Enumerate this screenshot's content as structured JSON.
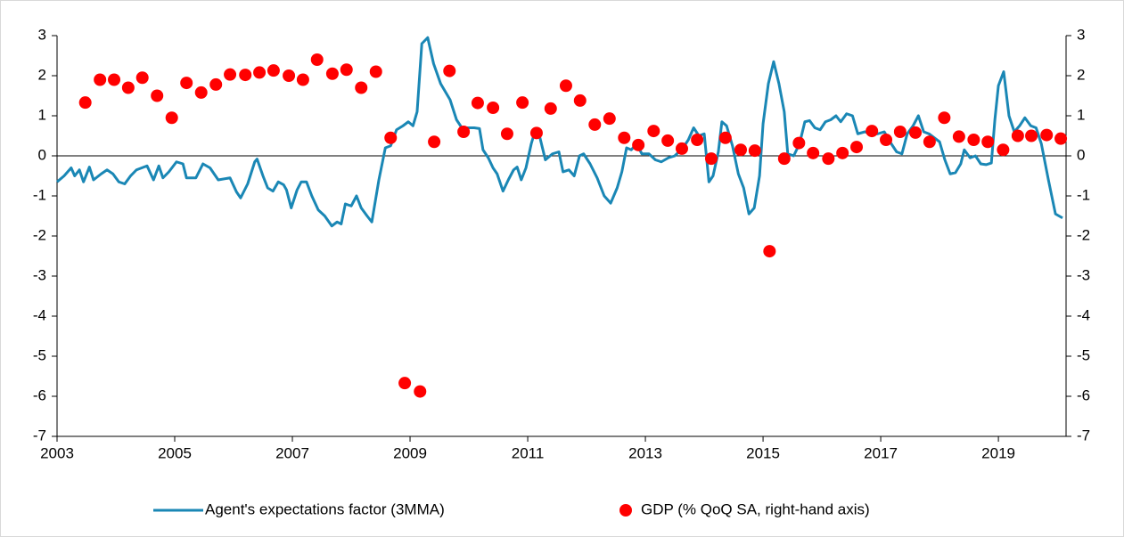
{
  "chart_data": {
    "type": "line",
    "xlim": [
      2003,
      2020.15
    ],
    "xticks": [
      2003,
      2005,
      2007,
      2009,
      2011,
      2013,
      2015,
      2017,
      2019
    ],
    "ylim": [
      -7,
      3
    ],
    "yticks": [
      -7,
      -6,
      -5,
      -4,
      -3,
      -2,
      -1,
      0,
      1,
      2,
      3
    ],
    "y2lim": [
      -7,
      3
    ],
    "y2ticks": [
      -7,
      -6,
      -5,
      -4,
      -3,
      -2,
      -1,
      0,
      1,
      2,
      3
    ],
    "legend": "bottom",
    "series": [
      {
        "name": "Agent's expectations factor (3MMA)",
        "type": "line",
        "color": "#1a87b5",
        "x": [
          2003.0,
          2003.12,
          2003.24,
          2003.3,
          2003.38,
          2003.45,
          2003.55,
          2003.62,
          2003.75,
          2003.85,
          2003.95,
          2004.05,
          2004.15,
          2004.25,
          2004.35,
          2004.53,
          2004.64,
          2004.73,
          2004.8,
          2004.9,
          2005.03,
          2005.14,
          2005.2,
          2005.36,
          2005.48,
          2005.6,
          2005.74,
          2005.94,
          2006.05,
          2006.12,
          2006.24,
          2006.36,
          2006.4,
          2006.5,
          2006.58,
          2006.67,
          2006.76,
          2006.85,
          2006.9,
          2006.98,
          2007.08,
          2007.15,
          2007.24,
          2007.33,
          2007.44,
          2007.55,
          2007.67,
          2007.76,
          2007.83,
          2007.9,
          2008.0,
          2008.09,
          2008.17,
          2008.27,
          2008.35,
          2008.47,
          2008.58,
          2008.67,
          2008.77,
          2008.88,
          2008.97,
          2009.05,
          2009.12,
          2009.2,
          2009.3,
          2009.4,
          2009.52,
          2009.6,
          2009.68,
          2009.79,
          2009.88,
          2009.98,
          2010.09,
          2010.18,
          2010.24,
          2010.33,
          2010.41,
          2010.48,
          2010.58,
          2010.67,
          2010.76,
          2010.82,
          2010.89,
          2010.97,
          2011.06,
          2011.12,
          2011.2,
          2011.3,
          2011.42,
          2011.53,
          2011.6,
          2011.7,
          2011.79,
          2011.88,
          2011.95,
          2012.06,
          2012.18,
          2012.3,
          2012.41,
          2012.52,
          2012.6,
          2012.68,
          2012.76,
          2012.85,
          2012.94,
          2013.06,
          2013.17,
          2013.27,
          2013.39,
          2013.5,
          2013.64,
          2013.73,
          2013.82,
          2013.91,
          2014.0,
          2014.08,
          2014.15,
          2014.24,
          2014.3,
          2014.38,
          2014.48,
          2014.58,
          2014.67,
          2014.76,
          2014.85,
          2014.94,
          2015.0,
          2015.09,
          2015.18,
          2015.27,
          2015.36,
          2015.42,
          2015.52,
          2015.62,
          2015.71,
          2015.79,
          2015.88,
          2015.97,
          2016.06,
          2016.15,
          2016.24,
          2016.32,
          2016.42,
          2016.52,
          2016.61,
          2016.73,
          2016.85,
          2016.95,
          2017.06,
          2017.18,
          2017.27,
          2017.36,
          2017.45,
          2017.55,
          2017.64,
          2017.73,
          2017.82,
          2017.91,
          2018.0,
          2018.09,
          2018.18,
          2018.27,
          2018.36,
          2018.42,
          2018.52,
          2018.61,
          2018.7,
          2018.79,
          2018.88,
          2018.94,
          2019.0,
          2019.09,
          2019.18,
          2019.27,
          2019.36,
          2019.45,
          2019.55,
          2019.64,
          2019.73,
          2019.85,
          2019.97,
          2020.09
        ],
        "values": [
          -0.65,
          -0.5,
          -0.3,
          -0.5,
          -0.35,
          -0.65,
          -0.28,
          -0.6,
          -0.45,
          -0.35,
          -0.45,
          -0.65,
          -0.7,
          -0.5,
          -0.35,
          -0.25,
          -0.6,
          -0.25,
          -0.55,
          -0.4,
          -0.15,
          -0.2,
          -0.55,
          -0.55,
          -0.2,
          -0.3,
          -0.6,
          -0.55,
          -0.9,
          -1.05,
          -0.7,
          -0.15,
          -0.08,
          -0.5,
          -0.8,
          -0.88,
          -0.65,
          -0.72,
          -0.85,
          -1.3,
          -0.85,
          -0.65,
          -0.65,
          -1.0,
          -1.35,
          -1.5,
          -1.75,
          -1.65,
          -1.7,
          -1.2,
          -1.25,
          -1.0,
          -1.3,
          -1.5,
          -1.65,
          -0.6,
          0.2,
          0.25,
          0.65,
          0.75,
          0.85,
          0.75,
          1.1,
          2.8,
          2.95,
          2.3,
          1.8,
          1.6,
          1.4,
          0.9,
          0.7,
          0.7,
          0.7,
          0.68,
          0.15,
          -0.05,
          -0.3,
          -0.45,
          -0.88,
          -0.6,
          -0.35,
          -0.28,
          -0.6,
          -0.3,
          0.3,
          0.6,
          0.5,
          -0.1,
          0.05,
          0.1,
          -0.4,
          -0.35,
          -0.5,
          0.0,
          0.05,
          -0.2,
          -0.55,
          -1.0,
          -1.18,
          -0.8,
          -0.4,
          0.2,
          0.15,
          0.3,
          0.05,
          0.05,
          -0.1,
          -0.15,
          -0.05,
          0.0,
          0.2,
          0.4,
          0.7,
          0.5,
          0.55,
          -0.65,
          -0.5,
          0.1,
          0.85,
          0.75,
          0.25,
          -0.45,
          -0.8,
          -1.45,
          -1.3,
          -0.5,
          0.8,
          1.8,
          2.35,
          1.8,
          1.1,
          0.05,
          0.0,
          0.3,
          0.85,
          0.88,
          0.7,
          0.65,
          0.85,
          0.9,
          1.0,
          0.85,
          1.05,
          1.0,
          0.55,
          0.6,
          0.55,
          0.55,
          0.6,
          0.3,
          0.1,
          0.05,
          0.55,
          0.75,
          1.0,
          0.6,
          0.55,
          0.45,
          0.35,
          -0.1,
          -0.45,
          -0.42,
          -0.2,
          0.15,
          -0.05,
          0.0,
          -0.2,
          -0.22,
          -0.18,
          0.9,
          1.75,
          2.1,
          1.0,
          0.6,
          0.75,
          0.95,
          0.75,
          0.7,
          0.3,
          -0.6,
          -1.45,
          -1.55
        ]
      },
      {
        "name": "GDP (% QoQ SA, right-hand axis)",
        "type": "scatter",
        "axis": "y2",
        "color": "#ff0000",
        "x": [
          2003.48,
          2003.73,
          2003.97,
          2004.21,
          2004.45,
          2004.7,
          2004.95,
          2005.2,
          2005.45,
          2005.7,
          2005.94,
          2006.2,
          2006.44,
          2006.68,
          2006.94,
          2007.18,
          2007.42,
          2007.68,
          2007.92,
          2008.17,
          2008.42,
          2008.67,
          2008.91,
          2009.17,
          2009.41,
          2009.67,
          2009.91,
          2010.15,
          2010.41,
          2010.65,
          2010.91,
          2011.15,
          2011.39,
          2011.65,
          2011.89,
          2012.14,
          2012.39,
          2012.64,
          2012.88,
          2013.14,
          2013.38,
          2013.62,
          2013.88,
          2014.12,
          2014.36,
          2014.62,
          2014.86,
          2015.11,
          2015.36,
          2015.61,
          2015.85,
          2016.11,
          2016.35,
          2016.59,
          2016.85,
          2017.09,
          2017.33,
          2017.59,
          2017.83,
          2018.08,
          2018.33,
          2018.58,
          2018.82,
          2019.08,
          2019.33,
          2019.56,
          2019.82,
          2020.06
        ],
        "values": [
          1.33,
          1.9,
          1.9,
          1.7,
          1.95,
          1.5,
          0.95,
          1.82,
          1.58,
          1.78,
          2.03,
          2.02,
          2.08,
          2.13,
          2.0,
          1.9,
          2.4,
          2.05,
          2.15,
          1.7,
          2.1,
          0.45,
          -5.67,
          -5.88,
          0.35,
          2.12,
          0.6,
          1.32,
          1.2,
          0.55,
          1.33,
          0.57,
          1.18,
          1.75,
          1.38,
          0.78,
          0.93,
          0.45,
          0.27,
          0.62,
          0.38,
          0.18,
          0.4,
          -0.07,
          0.45,
          0.15,
          0.13,
          -2.38,
          -0.07,
          0.32,
          0.07,
          -0.07,
          0.07,
          0.22,
          0.62,
          0.4,
          0.6,
          0.58,
          0.35,
          0.95,
          0.48,
          0.4,
          0.35,
          0.15,
          0.5,
          0.5,
          0.52,
          0.43
        ]
      }
    ]
  }
}
